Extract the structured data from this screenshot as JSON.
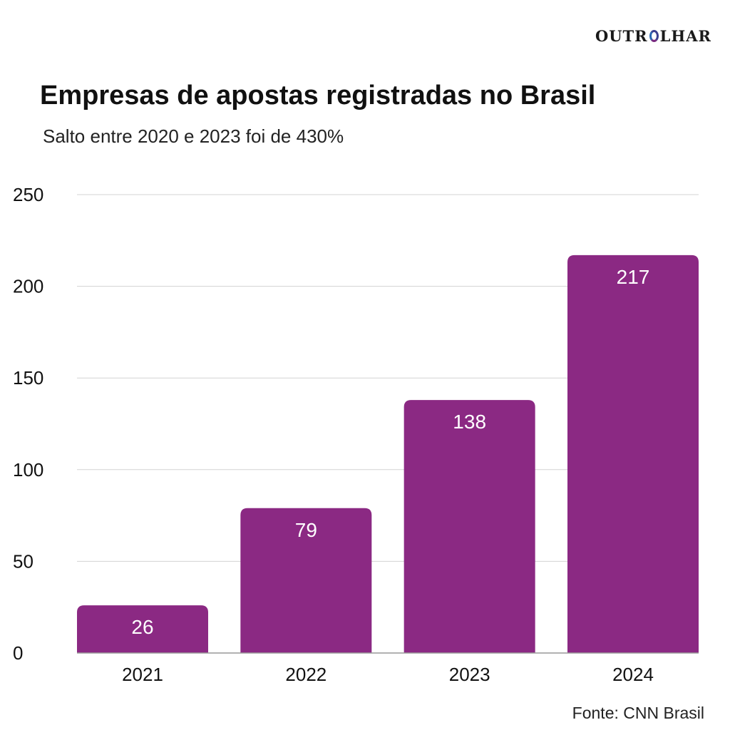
{
  "brand": {
    "logo_left": "OUTR",
    "logo_right": "LHAR"
  },
  "colors": {
    "bar": "#8b2983",
    "grid": "#d3d3d3",
    "axis": "#999999",
    "bar_label": "#ffffff"
  },
  "source": "Fonte: CNN Brasil",
  "chart_data": {
    "type": "bar",
    "title": "Empresas de apostas registradas no Brasil",
    "subtitle": "Salto entre 2020 e 2023 foi de 430%",
    "xlabel": "",
    "ylabel": "",
    "categories": [
      "2021",
      "2022",
      "2023",
      "2024"
    ],
    "values": [
      26,
      79,
      138,
      217
    ],
    "ylim": [
      0,
      250
    ],
    "yticks": [
      0,
      50,
      100,
      150,
      200,
      250
    ],
    "grid": true,
    "data_labels": true
  }
}
